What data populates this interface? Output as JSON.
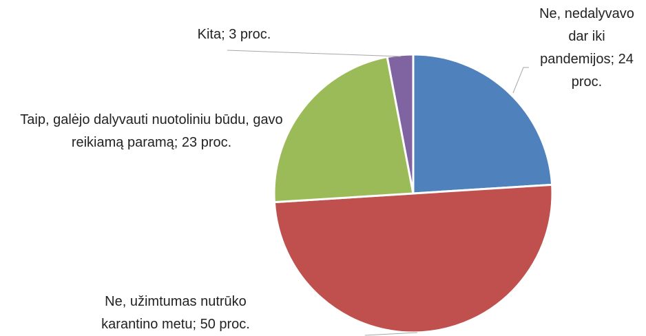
{
  "chart_data": {
    "type": "pie",
    "value_labels": [
      "Ne, nedalyvavo dar iki pandemijos; 24 proc.",
      "Ne, užimtumas nutrūko karantino metu; 50 proc.",
      "Taip, galėjo dalyvauti nuotoliniu būdu, gavo reikiamą paramą; 23 proc.",
      "Kita; 3 proc."
    ],
    "values": [
      24,
      50,
      23,
      3
    ],
    "colors": [
      "#4f81bd",
      "#c0504d",
      "#9bbb59",
      "#8064a2"
    ]
  }
}
